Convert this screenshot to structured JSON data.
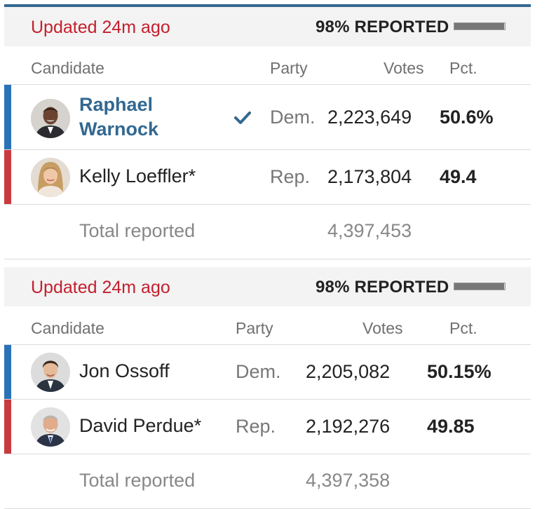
{
  "races": [
    {
      "status": {
        "updated": "Updated 24m ago",
        "reported": "98% REPORTED",
        "reported_fraction": 0.98
      },
      "headers": {
        "candidate": "Candidate",
        "party": "Party",
        "votes": "Votes",
        "pct": "Pct."
      },
      "candidates": [
        {
          "name_line1": "Raphael",
          "name_line2": "Warnock",
          "party": "Dem.",
          "votes": "2,223,649",
          "pct": "50.6%",
          "winner": true,
          "stripe_color": "#2a72b8"
        },
        {
          "name": "Kelly Loeffler*",
          "party": "Rep.",
          "votes": "2,173,804",
          "pct": "49.4",
          "winner": false,
          "stripe_color": "#c93a3f"
        }
      ],
      "total": {
        "label": "Total reported",
        "votes": "4,397,453"
      }
    },
    {
      "status": {
        "updated": "Updated 24m ago",
        "reported": "98% REPORTED",
        "reported_fraction": 0.98
      },
      "headers": {
        "candidate": "Candidate",
        "party": "Party",
        "votes": "Votes",
        "pct": "Pct."
      },
      "candidates": [
        {
          "name": "Jon Ossoff",
          "party": "Dem.",
          "votes": "2,205,082",
          "pct": "50.15%",
          "winner": false,
          "stripe_color": "#2a72b8"
        },
        {
          "name": "David Perdue*",
          "party": "Rep.",
          "votes": "2,192,276",
          "pct": "49.85",
          "winner": false,
          "stripe_color": "#c93a3f"
        }
      ],
      "total": {
        "label": "Total reported",
        "votes": "4,397,358"
      }
    }
  ],
  "colors": {
    "accent_blue": "#326891",
    "updated_red": "#c4202e"
  },
  "icons": {
    "winner": "checkmark-icon"
  }
}
